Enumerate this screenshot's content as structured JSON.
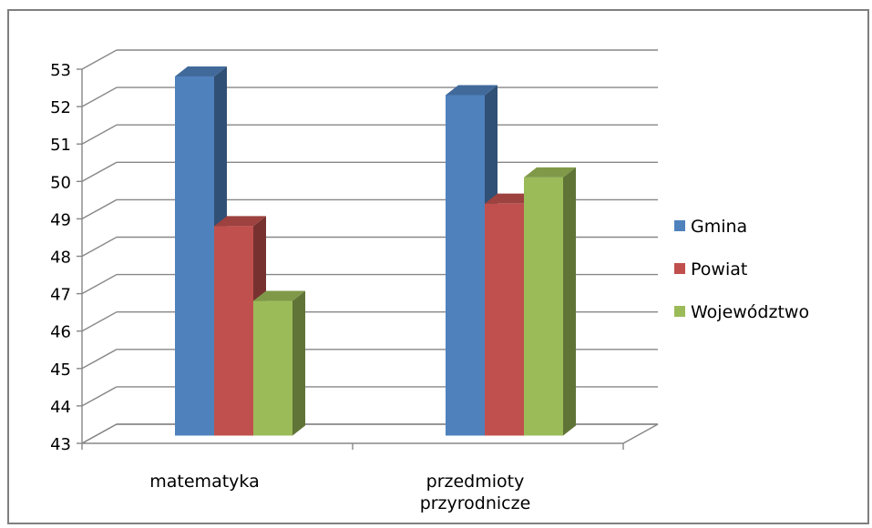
{
  "chart_data": {
    "type": "bar",
    "style": "3d-clustered-column",
    "title": "",
    "xlabel": "",
    "ylabel": "",
    "categories": [
      [
        "matematyka"
      ],
      [
        "przedmioty",
        "przyrodnicze"
      ]
    ],
    "y_ticks": [
      43,
      44,
      45,
      46,
      47,
      48,
      49,
      50,
      51,
      52,
      53
    ],
    "ylim": [
      43,
      53
    ],
    "grid": true,
    "legend_position": "right",
    "series": [
      {
        "name": "Gmina",
        "color": "#4F81BD",
        "values": [
          52.6,
          52.1
        ]
      },
      {
        "name": "Powiat",
        "color": "#C0504D",
        "values": [
          48.6,
          49.2
        ]
      },
      {
        "name": "Województwo",
        "color": "#9BBB59",
        "values": [
          46.6,
          49.9
        ]
      }
    ]
  }
}
